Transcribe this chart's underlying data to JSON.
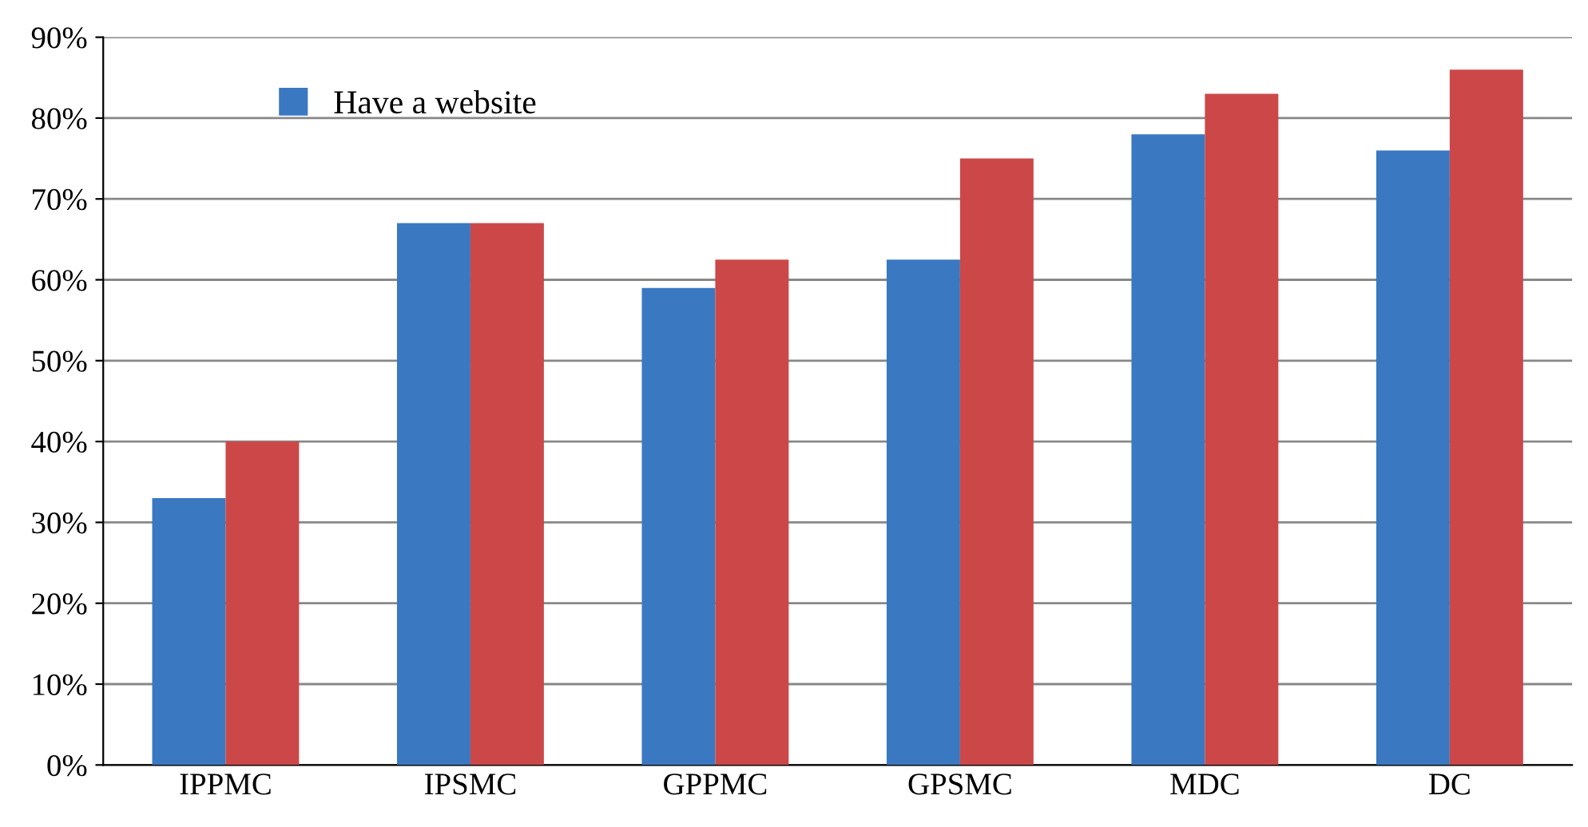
{
  "chart_data": {
    "type": "bar",
    "categories": [
      "IPPMC",
      "IPSMC",
      "GPPMC",
      "GPSMC",
      "MDC",
      "DC"
    ],
    "series": [
      {
        "name": "Have a website",
        "color": "#3a78c2",
        "values": [
          33,
          67,
          59,
          62.5,
          78,
          76
        ]
      },
      {
        "color": "#cc4848",
        "values": [
          40,
          67,
          62.5,
          75,
          83,
          86
        ]
      }
    ],
    "ylim": [
      0,
      90
    ],
    "yticks": [
      {
        "value": 0,
        "label": "0%"
      },
      {
        "value": 10,
        "label": "10%"
      },
      {
        "value": 20,
        "label": "20%"
      },
      {
        "value": 30,
        "label": "30%"
      },
      {
        "value": 40,
        "label": "40%"
      },
      {
        "value": 50,
        "label": "50%"
      },
      {
        "value": 60,
        "label": "60%"
      },
      {
        "value": 70,
        "label": "70%"
      },
      {
        "value": 80,
        "label": "80%"
      },
      {
        "value": 90,
        "label": "90%"
      }
    ],
    "grid": "y",
    "legend": "top left"
  }
}
